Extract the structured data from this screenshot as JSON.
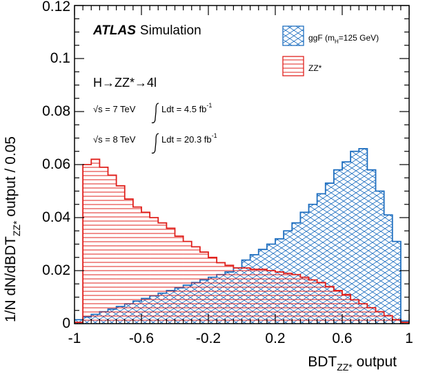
{
  "chart_data": {
    "type": "histogram",
    "x": [
      -1.0,
      -0.95,
      -0.9,
      -0.85,
      -0.8,
      -0.75,
      -0.7,
      -0.65,
      -0.6,
      -0.55,
      -0.5,
      -0.45,
      -0.4,
      -0.35,
      -0.3,
      -0.25,
      -0.2,
      -0.15,
      -0.1,
      -0.05,
      0.0,
      0.05,
      0.1,
      0.15,
      0.2,
      0.25,
      0.3,
      0.35,
      0.4,
      0.45,
      0.5,
      0.55,
      0.6,
      0.65,
      0.7,
      0.75,
      0.8,
      0.85,
      0.9,
      0.95
    ],
    "series": [
      {
        "name": "ggF (m_H=125 GeV)",
        "color": "#1f6fc0",
        "pattern": "crosshatch",
        "values": [
          0.0015,
          0.0025,
          0.0035,
          0.0045,
          0.0055,
          0.0065,
          0.0075,
          0.0085,
          0.0095,
          0.0105,
          0.0115,
          0.0125,
          0.0135,
          0.0145,
          0.0155,
          0.0165,
          0.0175,
          0.0185,
          0.0195,
          0.021,
          0.024,
          0.026,
          0.028,
          0.03,
          0.032,
          0.035,
          0.038,
          0.042,
          0.045,
          0.049,
          0.053,
          0.058,
          0.061,
          0.065,
          0.066,
          0.058,
          0.05,
          0.041,
          0.031,
          0.001
        ]
      },
      {
        "name": "ZZ*",
        "color": "#e0201c",
        "pattern": "horizontal",
        "values": [
          0.0005,
          0.06,
          0.062,
          0.059,
          0.056,
          0.052,
          0.047,
          0.044,
          0.042,
          0.04,
          0.038,
          0.036,
          0.033,
          0.031,
          0.029,
          0.027,
          0.025,
          0.023,
          0.022,
          0.021,
          0.021,
          0.0205,
          0.0205,
          0.02,
          0.0195,
          0.019,
          0.0185,
          0.0175,
          0.0165,
          0.0155,
          0.014,
          0.0125,
          0.011,
          0.009,
          0.0075,
          0.006,
          0.0045,
          0.003,
          0.0015,
          0.0005
        ]
      }
    ],
    "bin_width": 0.05,
    "xlim": [
      -1,
      1
    ],
    "ylim": [
      0,
      0.12
    ],
    "xticks": [
      "-1",
      "-0.6",
      "-0.2",
      "0.2",
      "0.6",
      "1"
    ],
    "yticks": [
      "0",
      "0.02",
      "0.04",
      "0.06",
      "0.08",
      "0.1",
      "0.12"
    ],
    "legend_position": "top-right",
    "grid": false
  },
  "texts": {
    "atlas": "ATLAS",
    "simulation": "Simulation",
    "process": "H→ZZ*→4l",
    "energy_7": "√s = 7 TeV",
    "lumi_7": "Ldt = 4.5 fb",
    "lumi_7_exp": "-1",
    "energy_8": "√s = 8 TeV",
    "lumi_8": "Ldt = 20.3 fb",
    "lumi_8_exp": "-1",
    "ylabel": "1/N dN/dBDT",
    "ylabel_sub": "ZZ*",
    "ylabel_tail": " output / 0.05",
    "xlabel": "BDT",
    "xlabel_sub": "ZZ*",
    "xlabel_tail": " output"
  }
}
